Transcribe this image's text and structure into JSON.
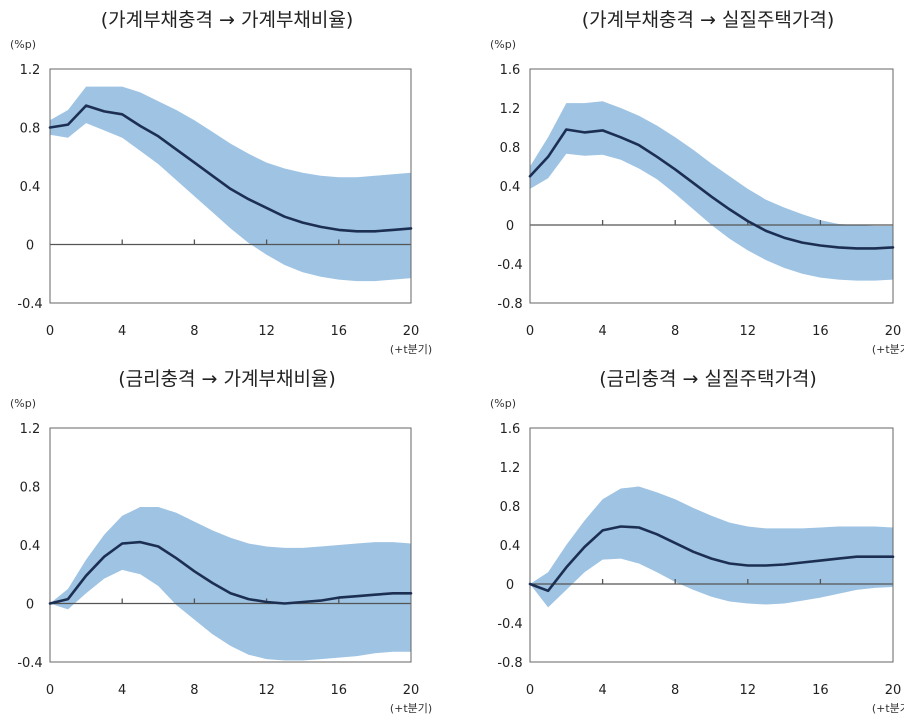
{
  "colors": {
    "band": "#9ec3e3",
    "line": "#1c2f52",
    "zero_line": "#555555",
    "frame": "#666666"
  },
  "chart_data": [
    {
      "type": "line",
      "title": "(가계부채충격 → 가계부채비율)",
      "ylabel": "(%p)",
      "xlabel": "(+t분기)",
      "xlim": [
        0,
        20
      ],
      "ylim": [
        -0.4,
        1.2
      ],
      "x_ticks": [
        "0",
        "4",
        "8",
        "12",
        "16",
        "20"
      ],
      "y_ticks": [
        "1.2",
        "0.8",
        "0.4",
        "0",
        "-0.4"
      ],
      "grid": false,
      "x": [
        0,
        1,
        2,
        3,
        4,
        5,
        6,
        7,
        8,
        9,
        10,
        11,
        12,
        13,
        14,
        15,
        16,
        17,
        18,
        19,
        20
      ],
      "series": [
        {
          "values": [
            0.8,
            0.82,
            0.95,
            0.91,
            0.89,
            0.81,
            0.74,
            0.65,
            0.56,
            0.47,
            0.38,
            0.31,
            0.25,
            0.19,
            0.15,
            0.12,
            0.1,
            0.09,
            0.09,
            0.1,
            0.11
          ]
        }
      ],
      "band_upper": [
        0.85,
        0.92,
        1.08,
        1.08,
        1.08,
        1.04,
        0.98,
        0.92,
        0.85,
        0.77,
        0.69,
        0.62,
        0.56,
        0.52,
        0.49,
        0.47,
        0.46,
        0.46,
        0.47,
        0.48,
        0.49
      ],
      "band_lower": [
        0.75,
        0.73,
        0.83,
        0.78,
        0.73,
        0.64,
        0.55,
        0.44,
        0.33,
        0.22,
        0.11,
        0.01,
        -0.07,
        -0.14,
        -0.19,
        -0.22,
        -0.24,
        -0.25,
        -0.25,
        -0.24,
        -0.23
      ]
    },
    {
      "type": "line",
      "title": "(가계부채충격 → 실질주택가격)",
      "ylabel": "(%p)",
      "xlabel": "(+t분기)",
      "xlim": [
        0,
        20
      ],
      "ylim": [
        -0.8,
        1.6
      ],
      "x_ticks": [
        "0",
        "4",
        "8",
        "12",
        "16",
        "20"
      ],
      "y_ticks": [
        "1.6",
        "1.2",
        "0.8",
        "0.4",
        "0",
        "-0.4",
        "-0.8"
      ],
      "grid": false,
      "x": [
        0,
        1,
        2,
        3,
        4,
        5,
        6,
        7,
        8,
        9,
        10,
        11,
        12,
        13,
        14,
        15,
        16,
        17,
        18,
        19,
        20
      ],
      "series": [
        {
          "values": [
            0.5,
            0.7,
            0.98,
            0.95,
            0.97,
            0.9,
            0.82,
            0.7,
            0.57,
            0.43,
            0.29,
            0.16,
            0.04,
            -0.06,
            -0.13,
            -0.18,
            -0.21,
            -0.23,
            -0.24,
            -0.24,
            -0.23
          ]
        }
      ],
      "band_upper": [
        0.6,
        0.9,
        1.25,
        1.25,
        1.27,
        1.2,
        1.12,
        1.02,
        0.9,
        0.77,
        0.63,
        0.5,
        0.37,
        0.26,
        0.18,
        0.11,
        0.05,
        0.01,
        0.0,
        -0.01,
        -0.01
      ],
      "band_lower": [
        0.37,
        0.48,
        0.73,
        0.71,
        0.72,
        0.67,
        0.58,
        0.47,
        0.32,
        0.16,
        0.0,
        -0.14,
        -0.26,
        -0.36,
        -0.44,
        -0.5,
        -0.54,
        -0.56,
        -0.57,
        -0.57,
        -0.56
      ]
    },
    {
      "type": "line",
      "title": "(금리충격 → 가계부채비율)",
      "ylabel": "(%p)",
      "xlabel": "(+t분기)",
      "xlim": [
        0,
        20
      ],
      "ylim": [
        -0.4,
        1.2
      ],
      "x_ticks": [
        "0",
        "4",
        "8",
        "12",
        "16",
        "20"
      ],
      "y_ticks": [
        "1.2",
        "0.8",
        "0.4",
        "0",
        "-0.4"
      ],
      "grid": false,
      "x": [
        0,
        1,
        2,
        3,
        4,
        5,
        6,
        7,
        8,
        9,
        10,
        11,
        12,
        13,
        14,
        15,
        16,
        17,
        18,
        19,
        20
      ],
      "series": [
        {
          "values": [
            0.0,
            0.03,
            0.19,
            0.32,
            0.41,
            0.42,
            0.39,
            0.31,
            0.22,
            0.14,
            0.07,
            0.03,
            0.01,
            0.0,
            0.01,
            0.02,
            0.04,
            0.05,
            0.06,
            0.07,
            0.07
          ]
        }
      ],
      "band_upper": [
        0.0,
        0.1,
        0.3,
        0.47,
        0.6,
        0.66,
        0.66,
        0.62,
        0.56,
        0.5,
        0.45,
        0.41,
        0.39,
        0.38,
        0.38,
        0.39,
        0.4,
        0.41,
        0.42,
        0.42,
        0.41
      ],
      "band_lower": [
        0.0,
        -0.04,
        0.07,
        0.17,
        0.23,
        0.2,
        0.12,
        -0.01,
        -0.11,
        -0.21,
        -0.29,
        -0.35,
        -0.38,
        -0.39,
        -0.39,
        -0.38,
        -0.37,
        -0.36,
        -0.34,
        -0.33,
        -0.33
      ]
    },
    {
      "type": "line",
      "title": "(금리충격 → 실질주택가격)",
      "ylabel": "(%p)",
      "xlabel": "(+t분기)",
      "xlim": [
        0,
        20
      ],
      "ylim": [
        -0.8,
        1.6
      ],
      "x_ticks": [
        "0",
        "4",
        "8",
        "12",
        "16",
        "20"
      ],
      "y_ticks": [
        "1.6",
        "1.2",
        "0.8",
        "0.4",
        "0",
        "-0.4",
        "-0.8"
      ],
      "grid": false,
      "x": [
        0,
        1,
        2,
        3,
        4,
        5,
        6,
        7,
        8,
        9,
        10,
        11,
        12,
        13,
        14,
        15,
        16,
        17,
        18,
        19,
        20
      ],
      "series": [
        {
          "values": [
            0.0,
            -0.07,
            0.17,
            0.38,
            0.55,
            0.59,
            0.58,
            0.51,
            0.42,
            0.33,
            0.26,
            0.21,
            0.19,
            0.19,
            0.2,
            0.22,
            0.24,
            0.26,
            0.28,
            0.28,
            0.28
          ]
        }
      ],
      "band_upper": [
        0.0,
        0.12,
        0.4,
        0.65,
        0.87,
        0.98,
        1.0,
        0.94,
        0.87,
        0.78,
        0.7,
        0.63,
        0.59,
        0.57,
        0.57,
        0.57,
        0.58,
        0.59,
        0.59,
        0.59,
        0.58
      ],
      "band_lower": [
        0.0,
        -0.24,
        -0.06,
        0.12,
        0.25,
        0.26,
        0.21,
        0.12,
        0.02,
        -0.06,
        -0.13,
        -0.18,
        -0.2,
        -0.21,
        -0.2,
        -0.17,
        -0.14,
        -0.1,
        -0.06,
        -0.04,
        -0.03
      ]
    }
  ]
}
